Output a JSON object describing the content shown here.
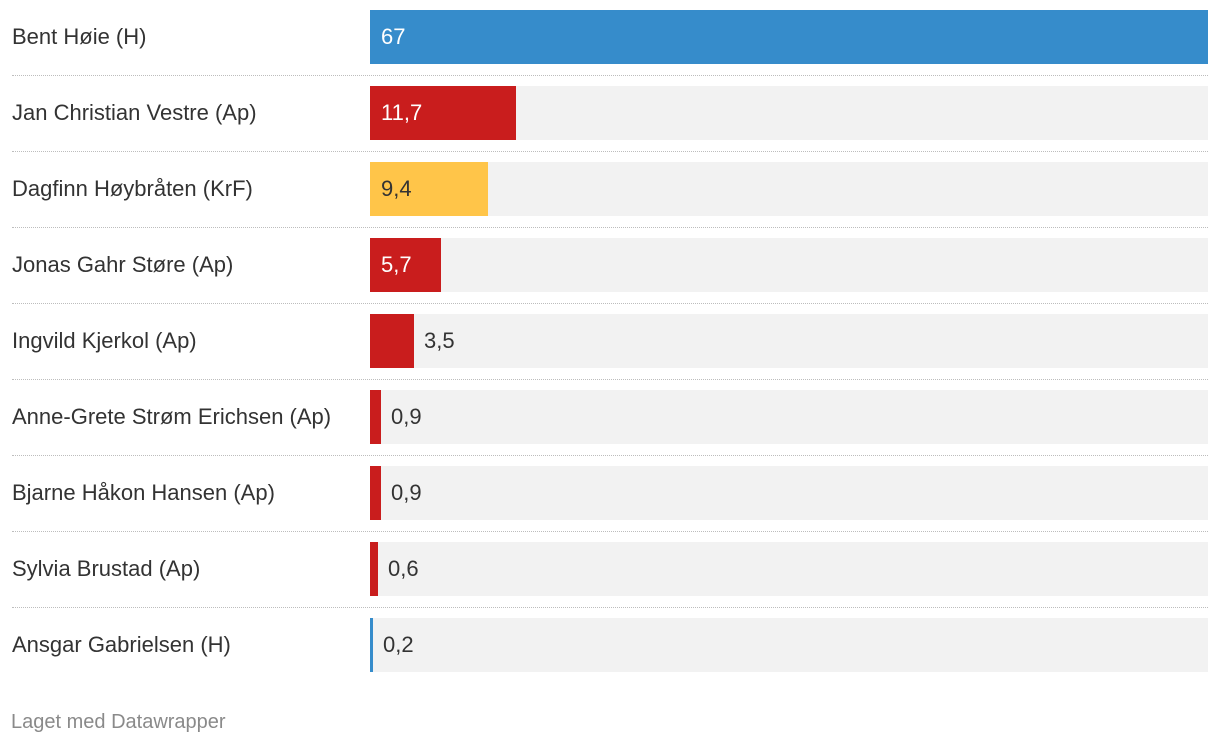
{
  "chart_data": {
    "type": "bar",
    "orientation": "horizontal",
    "xlim": [
      0,
      67
    ],
    "grid": false,
    "categories": [
      "Bent Høie (H)",
      "Jan Christian Vestre (Ap)",
      "Dagfinn Høybråten (KrF)",
      "Jonas Gahr Støre (Ap)",
      "Ingvild Kjerkol (Ap)",
      "Anne-Grete Strøm Erichsen (Ap)",
      "Bjarne Håkon Hansen (Ap)",
      "Sylvia Brustad (Ap)",
      "Ansgar Gabrielsen (H)"
    ],
    "values": [
      67,
      11.7,
      9.4,
      5.7,
      3.5,
      0.9,
      0.9,
      0.6,
      0.2
    ],
    "value_labels": [
      "67",
      "11,7",
      "9,4",
      "5,7",
      "3,5",
      "0,9",
      "0,9",
      "0,6",
      "0,2"
    ],
    "bar_colors": [
      "#368ccb",
      "#c91d1d",
      "#ffc549",
      "#c91d1d",
      "#c91d1d",
      "#c91d1d",
      "#c91d1d",
      "#c91d1d",
      "#368ccb"
    ],
    "value_label_colors": [
      "#ffffff",
      "#ffffff",
      "#333333",
      "#ffffff",
      "#333333",
      "#333333",
      "#333333",
      "#333333",
      "#333333"
    ]
  },
  "footer": {
    "credit": "Laget med Datawrapper"
  }
}
